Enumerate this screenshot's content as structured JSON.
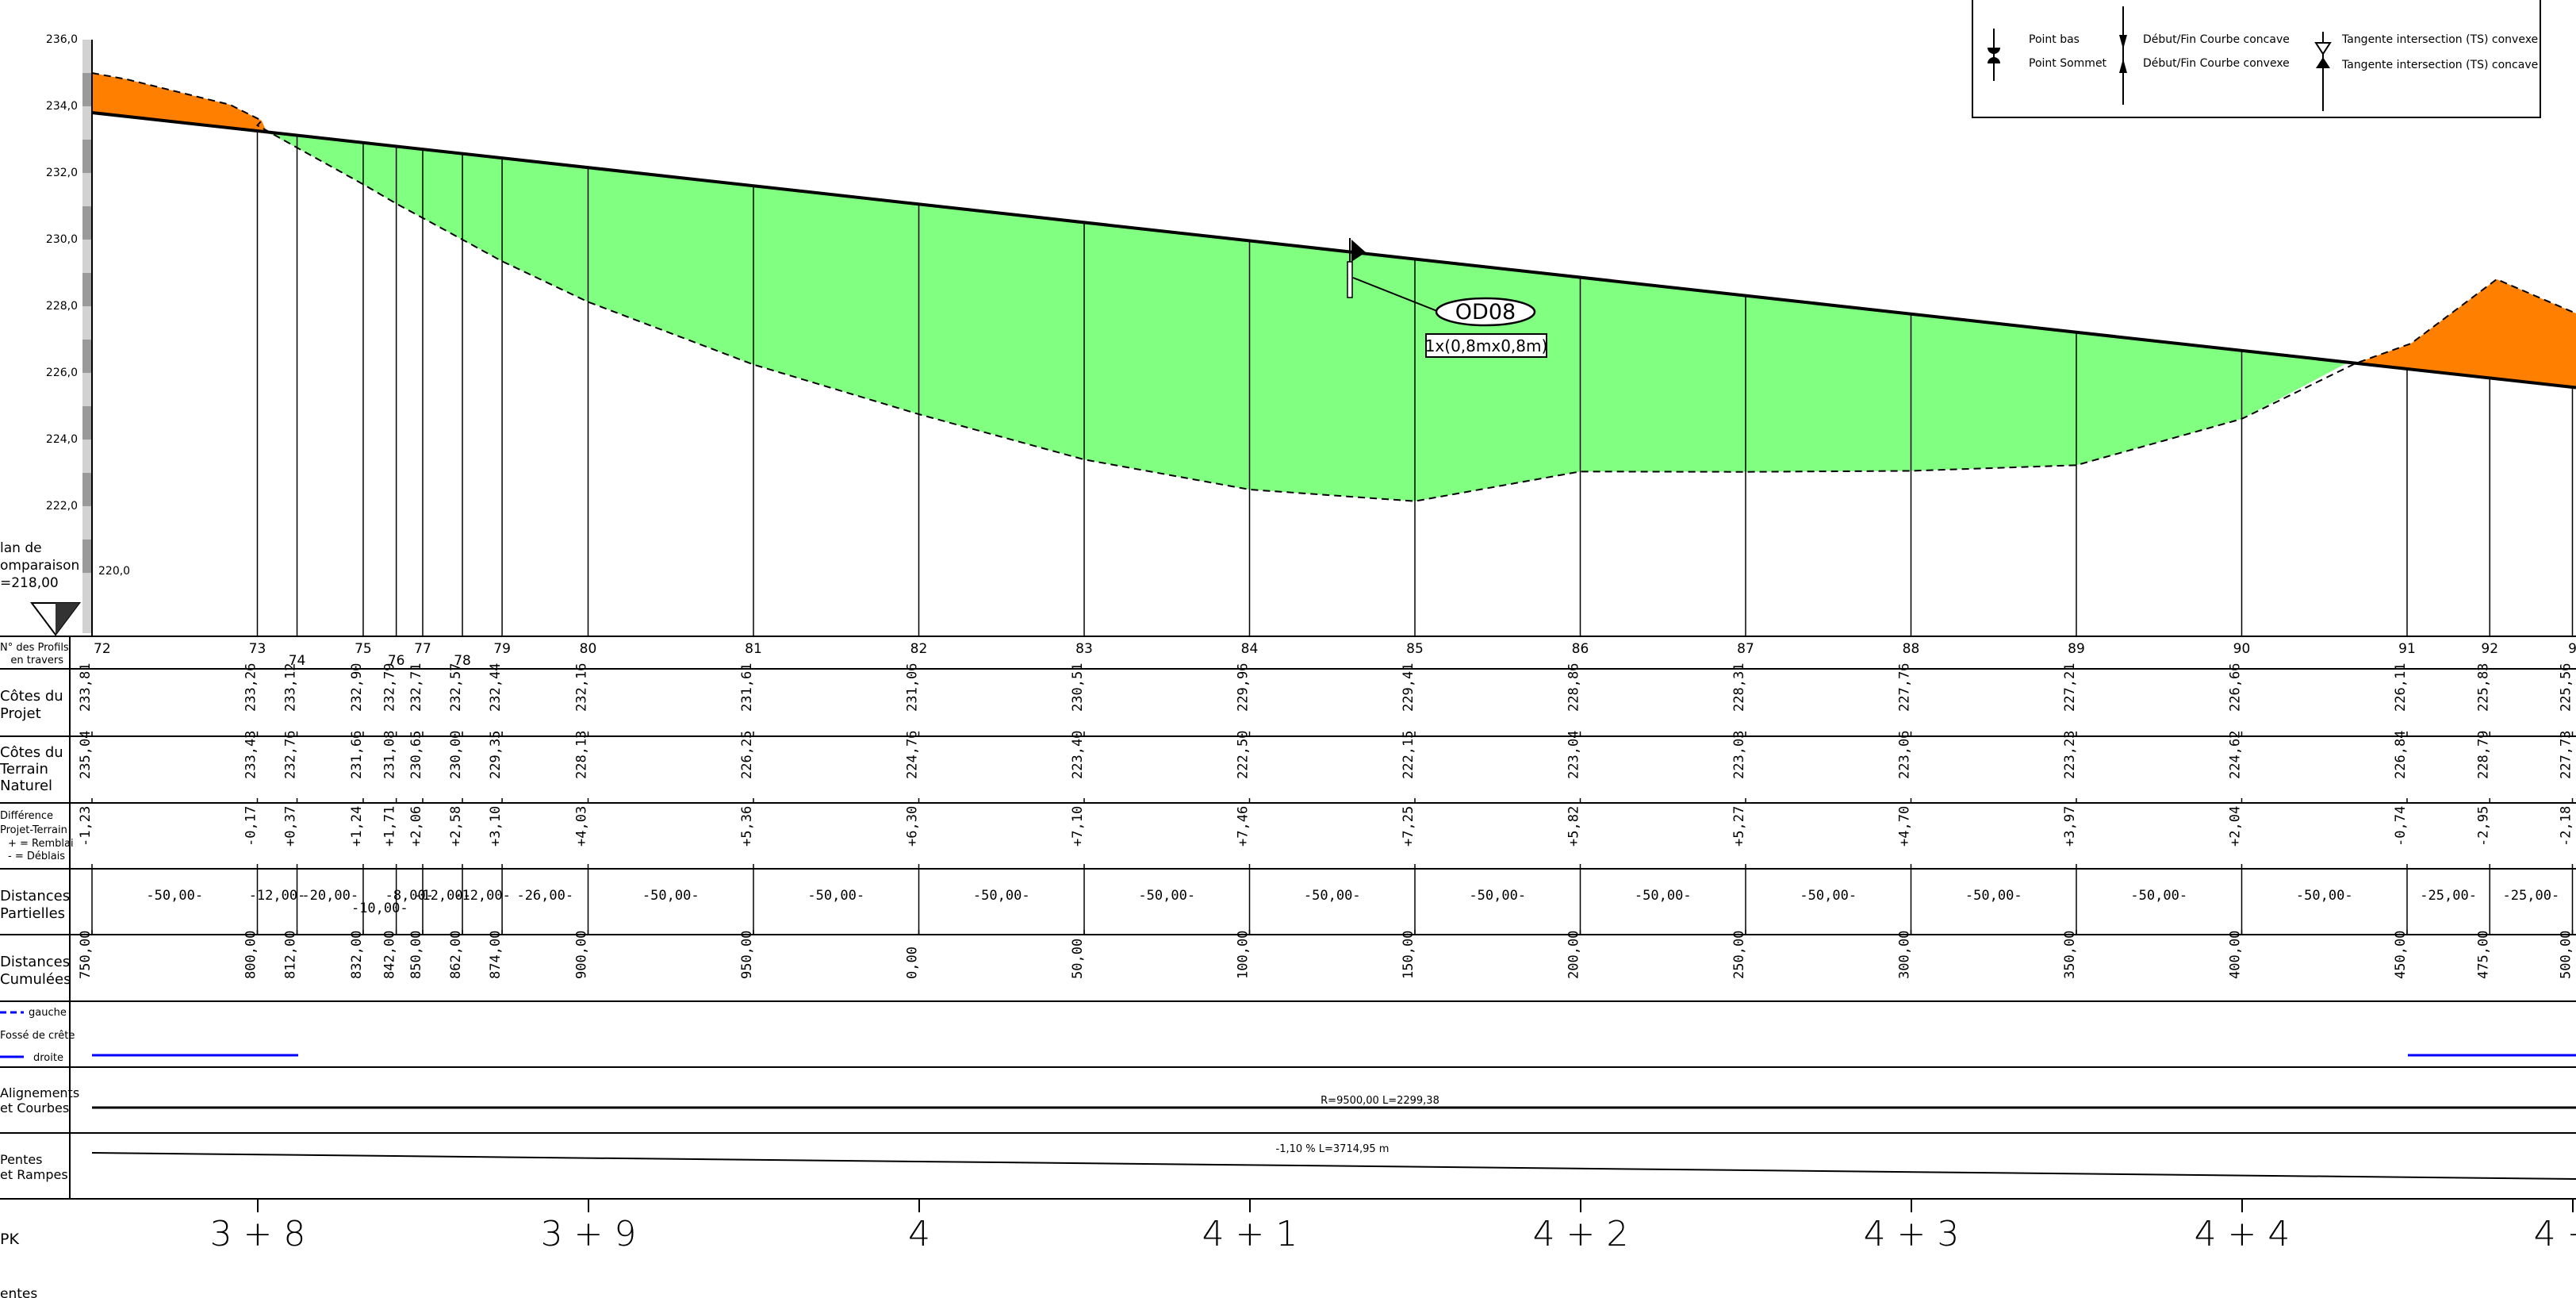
{
  "y_axis": {
    "ticks": [
      "236,0",
      "234,0",
      "232,0",
      "230,0",
      "228,0",
      "226,0",
      "224,0",
      "222,0"
    ],
    "datum_value": "220,0",
    "comparison_plane": [
      "lan de",
      "omparaison",
      "=218,00"
    ]
  },
  "legend": {
    "point_bas": "Point bas",
    "point_sommet": "Point Sommet",
    "concave": "Début/Fin Courbe concave",
    "convexe": "Début/Fin Courbe convexe",
    "ts_convexe": "Tangente intersection (TS) convexe",
    "ts_concave": "Tangente intersection (TS) concave"
  },
  "structure": {
    "name": "OD08",
    "dims": "1x(0,8mx0,8m)"
  },
  "row_labels": {
    "profils": [
      "N° des Profils",
      "en travers"
    ],
    "projet": [
      "Côtes du",
      "Projet"
    ],
    "terrain": [
      "Côtes du",
      "Terrain",
      "Naturel"
    ],
    "difference": [
      "Différence",
      "Projet-Terrain",
      "+ = Remblai",
      "- = Déblais"
    ],
    "partielles": [
      "Distances",
      "Partielles"
    ],
    "cumulees": [
      "Distances",
      "Cumulées"
    ],
    "fosse": [
      "gauche",
      "Fossé de crête",
      "droite"
    ],
    "alignements": [
      "Alignements",
      "et Courbes"
    ],
    "pentes": [
      "Pentes",
      "et Rampes"
    ],
    "pk": "PK",
    "bottom": "entes"
  },
  "profiles": [
    {
      "no": "72",
      "projet": "233,81",
      "terrain": "235,04",
      "diff": "-1,23",
      "cumul": "750,00"
    },
    {
      "no": "73",
      "projet": "233,26",
      "terrain": "233,43",
      "diff": "-0,17",
      "cumul": "800,00"
    },
    {
      "no": "74",
      "projet": "233,12",
      "terrain": "232,76",
      "diff": "+0,37",
      "cumul": "812,00"
    },
    {
      "no": "75",
      "projet": "232,90",
      "terrain": "231,66",
      "diff": "+1,24",
      "cumul": "832,00"
    },
    {
      "no": "76",
      "projet": "232,79",
      "terrain": "231,08",
      "diff": "+1,71",
      "cumul": "842,00"
    },
    {
      "no": "77",
      "projet": "232,71",
      "terrain": "230,65",
      "diff": "+2,06",
      "cumul": "850,00"
    },
    {
      "no": "78",
      "projet": "232,57",
      "terrain": "230,00",
      "diff": "+2,58",
      "cumul": "862,00"
    },
    {
      "no": "79",
      "projet": "232,44",
      "terrain": "229,35",
      "diff": "+3,10",
      "cumul": "874,00"
    },
    {
      "no": "80",
      "projet": "232,16",
      "terrain": "228,13",
      "diff": "+4,03",
      "cumul": "900,00"
    },
    {
      "no": "81",
      "projet": "231,61",
      "terrain": "226,25",
      "diff": "+5,36",
      "cumul": "950,00"
    },
    {
      "no": "82",
      "projet": "231,06",
      "terrain": "224,76",
      "diff": "+6,30",
      "cumul": "0,00"
    },
    {
      "no": "83",
      "projet": "230,51",
      "terrain": "223,40",
      "diff": "+7,10",
      "cumul": "50,00"
    },
    {
      "no": "84",
      "projet": "229,96",
      "terrain": "222,50",
      "diff": "+7,46",
      "cumul": "100,00"
    },
    {
      "no": "85",
      "projet": "229,41",
      "terrain": "222,15",
      "diff": "+7,25",
      "cumul": "150,00"
    },
    {
      "no": "86",
      "projet": "228,86",
      "terrain": "223,04",
      "diff": "+5,82",
      "cumul": "200,00"
    },
    {
      "no": "87",
      "projet": "228,31",
      "terrain": "223,03",
      "diff": "+5,27",
      "cumul": "250,00"
    },
    {
      "no": "88",
      "projet": "227,76",
      "terrain": "223,06",
      "diff": "+4,70",
      "cumul": "300,00"
    },
    {
      "no": "89",
      "projet": "227,21",
      "terrain": "223,23",
      "diff": "+3,97",
      "cumul": "350,00"
    },
    {
      "no": "90",
      "projet": "226,66",
      "terrain": "224,62",
      "diff": "+2,04",
      "cumul": "400,00"
    },
    {
      "no": "91",
      "projet": "226,11",
      "terrain": "226,84",
      "diff": "-0,74",
      "cumul": "450,00"
    },
    {
      "no": "92",
      "projet": "225,83",
      "terrain": "228,79",
      "diff": "-2,95",
      "cumul": "475,00"
    },
    {
      "no": "9",
      "projet": "225,56",
      "terrain": "227,73",
      "diff": "-2,18",
      "cumul": "500,00"
    }
  ],
  "partial_distances": [
    "-50,00-",
    "-12,00-",
    "-20,00-",
    "-10,00-",
    "-8,00-",
    "-12,00-",
    "-12,00-",
    "-26,00-",
    "-50,00-",
    "-50,00-",
    "-50,00-",
    "-50,00-",
    "-50,00-",
    "-50,00-",
    "-50,00-",
    "-50,00-",
    "-50,00-",
    "-50,00-",
    "-50,00-",
    "-25,00-",
    "-25,00-"
  ],
  "alignment": "R=9500,00    L=2299,38",
  "slope": "-1,10 %    L=3714,95 m",
  "pk_labels": [
    "3 + 8",
    "3 + 9",
    "4",
    "4 + 1",
    "4 + 2",
    "4 + 3",
    "4 + 4",
    "4 +"
  ],
  "colors": {
    "fill": "#80ff80",
    "cut": "#ff8000",
    "ditch": "#0000ff",
    "ink": "#000000"
  }
}
